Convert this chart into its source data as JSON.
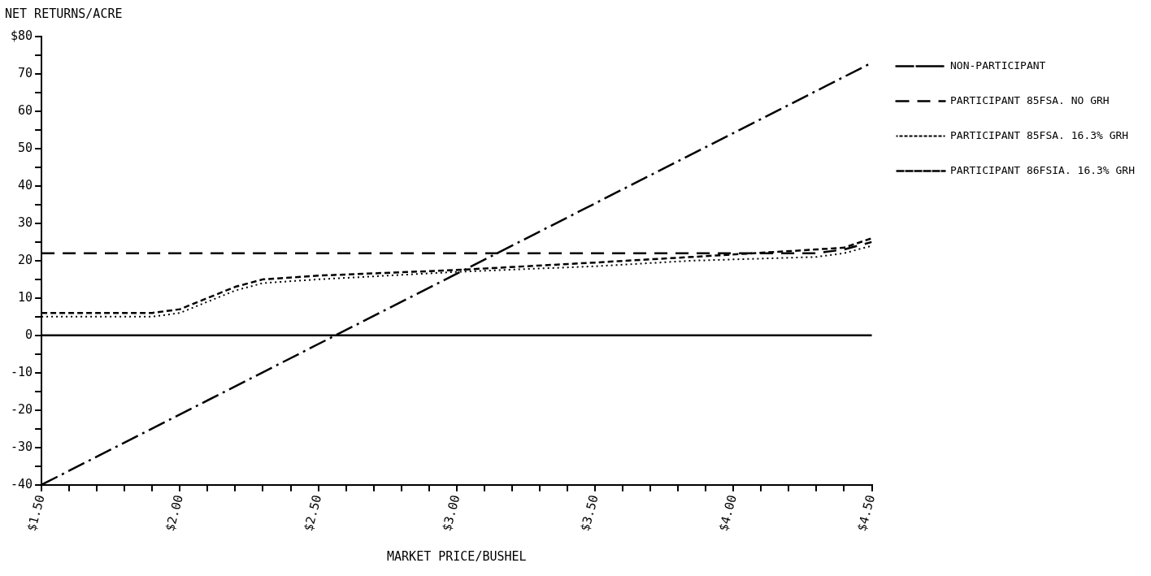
{
  "chart_data": {
    "type": "line",
    "ylabel": "NET RETURNS/ACRE",
    "xlabel": "MARKET PRICE/BUSHEL",
    "xlim": [
      1.5,
      4.5
    ],
    "xticks": [
      {
        "value": 1.5,
        "label": "$1.50"
      },
      {
        "value": 1.6,
        "label": null
      },
      {
        "value": 1.7,
        "label": null
      },
      {
        "value": 1.8,
        "label": null
      },
      {
        "value": 1.9,
        "label": null
      },
      {
        "value": 2.0,
        "label": "$2.00"
      },
      {
        "value": 2.1,
        "label": null
      },
      {
        "value": 2.2,
        "label": null
      },
      {
        "value": 2.3,
        "label": null
      },
      {
        "value": 2.4,
        "label": null
      },
      {
        "value": 2.5,
        "label": "$2.50"
      },
      {
        "value": 2.6,
        "label": null
      },
      {
        "value": 2.7,
        "label": null
      },
      {
        "value": 2.8,
        "label": null
      },
      {
        "value": 2.9,
        "label": null
      },
      {
        "value": 3.0,
        "label": "$3.00"
      },
      {
        "value": 3.1,
        "label": null
      },
      {
        "value": 3.2,
        "label": null
      },
      {
        "value": 3.3,
        "label": null
      },
      {
        "value": 3.4,
        "label": null
      },
      {
        "value": 3.5,
        "label": "$3.50"
      },
      {
        "value": 3.6,
        "label": null
      },
      {
        "value": 3.7,
        "label": null
      },
      {
        "value": 3.8,
        "label": null
      },
      {
        "value": 3.9,
        "label": null
      },
      {
        "value": 4.0,
        "label": "$4.00"
      },
      {
        "value": 4.1,
        "label": null
      },
      {
        "value": 4.2,
        "label": null
      },
      {
        "value": 4.3,
        "label": null
      },
      {
        "value": 4.4,
        "label": null
      },
      {
        "value": 4.5,
        "label": "$4.50"
      }
    ],
    "ylim": [
      -40,
      80
    ],
    "yticks": [
      -40,
      {
        "value": -35,
        "label": null
      },
      -30,
      {
        "value": -25,
        "label": null
      },
      -20,
      {
        "value": -15,
        "label": null
      },
      -10,
      {
        "value": -5,
        "label": null
      },
      0,
      {
        "value": 5,
        "label": null
      },
      10,
      {
        "value": 15,
        "label": null
      },
      20,
      {
        "value": 25,
        "label": null
      },
      30,
      {
        "value": 35,
        "label": null
      },
      40,
      {
        "value": 45,
        "label": null
      },
      50,
      {
        "value": 55,
        "label": null
      },
      60,
      {
        "value": 65,
        "label": null
      },
      70,
      {
        "value": 75,
        "label": null
      },
      {
        "value": 80,
        "label": "$80"
      }
    ],
    "grid": false,
    "legend": "right",
    "marker": "none",
    "ref_lines": [
      {
        "axis": "y",
        "value": 0,
        "color": "#000000",
        "line_style": "solid"
      }
    ],
    "series": [
      {
        "name": "NON-PARTICIPANT",
        "color": "#000000",
        "line_style": "dashdot",
        "x": [
          1.5,
          4.5
        ],
        "values": [
          -40,
          73
        ]
      },
      {
        "name": "PARTICIPANT 85FSA. NO GRH",
        "color": "#000000",
        "line_style": "dashed",
        "x": [
          1.5,
          4.3,
          4.4,
          4.5
        ],
        "values": [
          22,
          22,
          23,
          25
        ]
      },
      {
        "name": "PARTICIPANT 85FSA. 16.3% GRH",
        "color": "#000000",
        "line_style": "dotted",
        "x": [
          1.5,
          1.9,
          2.0,
          2.1,
          2.2,
          2.3,
          2.5,
          3.0,
          3.5,
          3.85,
          4.3,
          4.4,
          4.5
        ],
        "values": [
          5,
          5,
          6,
          9,
          12,
          14,
          15,
          17,
          18.5,
          20,
          21,
          22,
          24
        ]
      },
      {
        "name": "PARTICIPANT 86FSIA. 16.3% GRH",
        "color": "#000000",
        "line_style": "shortdash",
        "x": [
          1.5,
          1.9,
          2.0,
          2.1,
          2.2,
          2.3,
          2.5,
          3.0,
          3.5,
          3.85,
          4.3,
          4.4,
          4.5
        ],
        "values": [
          6,
          6,
          7,
          10,
          13,
          15,
          16,
          17.5,
          19.5,
          21,
          23,
          23.5,
          26
        ]
      }
    ]
  }
}
